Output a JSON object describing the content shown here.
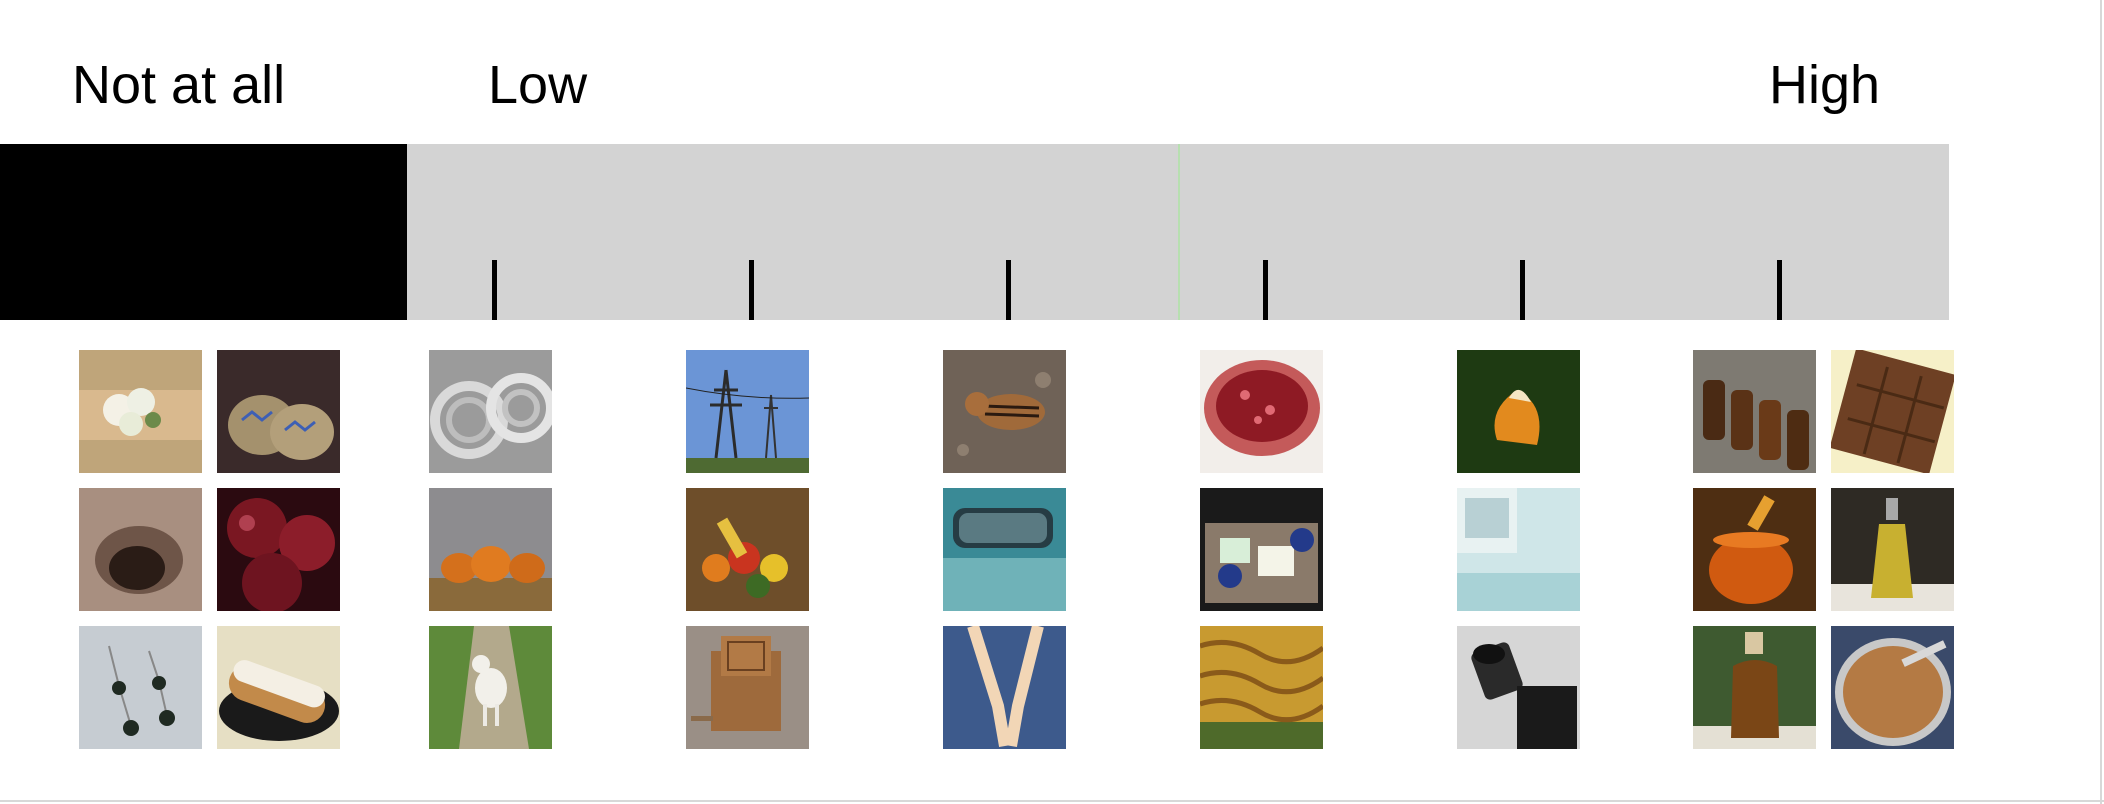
{
  "scale": {
    "labels": {
      "not_at_all": "Not at all",
      "low": "Low",
      "high": "High"
    },
    "tick_count": 6,
    "colors": {
      "not_at_all_block": "#000000",
      "scale_band": "#d3d3d3",
      "tick": "#000000"
    }
  },
  "columns": [
    {
      "id": "not-at-all-1",
      "thumbnails": [
        "wrist-corsage-image",
        "moccasins-image",
        "hole-in-ground-image"
      ]
    },
    {
      "id": "not-at-all-2",
      "thumbnails": [
        "beets-image",
        "bead-earrings-image",
        "eclair-image"
      ]
    },
    {
      "id": "low-1",
      "thumbnails": [
        "wire-coils-image",
        "pumpkins-image",
        "lamb-image"
      ]
    },
    {
      "id": "low-2",
      "thumbnails": [
        "power-lines-image",
        "cornucopia-image",
        "wooden-music-box-image"
      ]
    },
    {
      "id": "mid-1",
      "thumbnails": [
        "chipmunk-image",
        "car-mirror-image",
        "lanyard-image"
      ]
    },
    {
      "id": "mid-2",
      "thumbnails": [
        "pomegranate-image",
        "food-containers-image",
        "lasagna-image"
      ]
    },
    {
      "id": "mid-3",
      "thumbnails": [
        "orange-peel-image",
        "freezer-ice-image",
        "telescope-eyepiece-image"
      ]
    },
    {
      "id": "high-1",
      "thumbnails": [
        "syrup-bottles-image",
        "honey-jar-image",
        "maple-syrup-bottle-image"
      ]
    },
    {
      "id": "high-2",
      "thumbnails": [
        "chocolate-bar-image",
        "oil-cruet-image",
        "peanut-butter-image"
      ]
    }
  ]
}
